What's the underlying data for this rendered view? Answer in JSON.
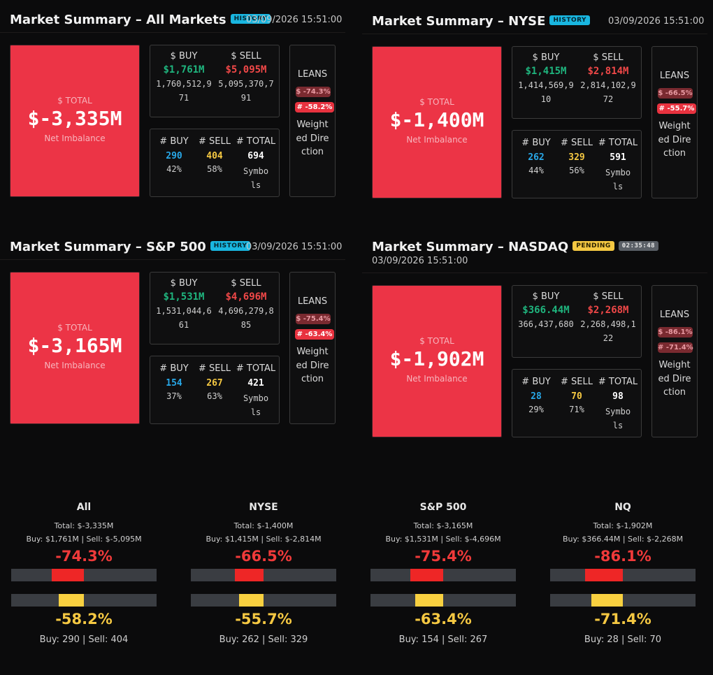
{
  "labels": {
    "total": "$ TOTAL",
    "net_imbalance": "Net Imbalance",
    "dollar_buy": "$ BUY",
    "dollar_sell": "$ SELL",
    "count_buy": "# BUY",
    "count_sell": "# SELL",
    "count_total": "# TOTAL",
    "symbols": "Symbols",
    "leans": "LEANS",
    "weighted_direction": "Weighted Direction"
  },
  "panels": [
    {
      "title": "Market Summary – All Markets",
      "badge": "HISTORY",
      "timestamp": "03/09/2026 15:51:00",
      "total": "$-3,335M",
      "buy_big": "$1,761M",
      "buy_raw": "1,760,512,971",
      "sell_big": "$5,095M",
      "sell_raw": "5,095,370,791",
      "buy_count": "290",
      "buy_pct": "42%",
      "sell_count": "404",
      "sell_pct": "58%",
      "total_count": "694",
      "lean_dollar": "$ -74.3%",
      "lean_count": "# -58.2%"
    },
    {
      "title": "Market Summary – NYSE",
      "badge": "HISTORY",
      "timestamp": "03/09/2026 15:51:00",
      "total": "$-1,400M",
      "buy_big": "$1,415M",
      "buy_raw": "1,414,569,910",
      "sell_big": "$2,814M",
      "sell_raw": "2,814,102,972",
      "buy_count": "262",
      "buy_pct": "44%",
      "sell_count": "329",
      "sell_pct": "56%",
      "total_count": "591",
      "lean_dollar": "$ -66.5%",
      "lean_count": "# -55.7%"
    },
    {
      "title": "Market Summary – S&P 500",
      "badge": "HISTORY",
      "timestamp": "03/09/2026 15:51:00",
      "total": "$-3,165M",
      "buy_big": "$1,531M",
      "buy_raw": "1,531,044,661",
      "sell_big": "$4,696M",
      "sell_raw": "4,696,279,885",
      "buy_count": "154",
      "buy_pct": "37%",
      "sell_count": "267",
      "sell_pct": "63%",
      "total_count": "421",
      "lean_dollar": "$ -75.4%",
      "lean_count": "# -63.4%"
    },
    {
      "title": "Market Summary – NASDAQ",
      "badge": "PENDING",
      "timer": "02:35:48",
      "timestamp": "03/09/2026 15:51:00",
      "total": "$-1,902M",
      "buy_big": "$366.44M",
      "buy_raw": "366,437,680",
      "sell_big": "$2,268M",
      "sell_raw": "2,268,498,122",
      "buy_count": "28",
      "buy_pct": "29%",
      "sell_count": "70",
      "sell_pct": "71%",
      "total_count": "98",
      "lean_dollar": "$ -86.1%",
      "lean_count": "# -71.4%"
    }
  ],
  "bars": [
    {
      "name": "All",
      "total": "Total: $-3,335M",
      "buy_sell": "Buy: $1,761M | Sell: $-5,095M",
      "dollar_pct": "-74.3%",
      "dollar_value": -74.3,
      "count_pct": "-58.2%",
      "count_value": -58.2,
      "counts": "Buy: 290 | Sell: 404"
    },
    {
      "name": "NYSE",
      "total": "Total: $-1,400M",
      "buy_sell": "Buy: $1,415M | Sell: $-2,814M",
      "dollar_pct": "-66.5%",
      "dollar_value": -66.5,
      "count_pct": "-55.7%",
      "count_value": -55.7,
      "counts": "Buy: 262 | Sell: 329"
    },
    {
      "name": "S&P 500",
      "total": "Total: $-3,165M",
      "buy_sell": "Buy: $1,531M | Sell: $-4,696M",
      "dollar_pct": "-75.4%",
      "dollar_value": -75.4,
      "count_pct": "-63.4%",
      "count_value": -63.4,
      "counts": "Buy: 154 | Sell: 267"
    },
    {
      "name": "NQ",
      "total": "Total: $-1,902M",
      "buy_sell": "Buy: $366.44M | Sell: $-2,268M",
      "dollar_pct": "-86.1%",
      "dollar_value": -86.1,
      "count_pct": "-71.4%",
      "count_value": -71.4,
      "counts": "Buy: 28 | Sell: 70"
    }
  ],
  "colors": {
    "total_bg": "#ec3446",
    "buy_green": "#1fb57e",
    "sell_red": "#f04848",
    "count_buy_blue": "#28a8e8",
    "count_sell_yellow": "#f5c842",
    "history_badge": "#19b6e0",
    "pending_badge": "#f5c842"
  }
}
